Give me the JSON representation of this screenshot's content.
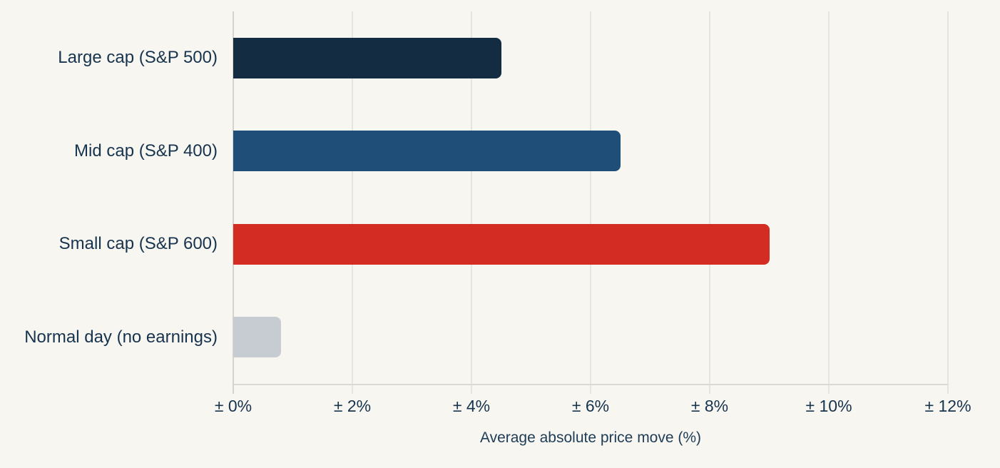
{
  "chart_data": {
    "type": "bar",
    "orientation": "horizontal",
    "title": "",
    "categories": [
      "Large cap (S&P 500)",
      "Mid cap (S&P 400)",
      "Small cap (S&P 600)",
      "Normal day (no earnings)"
    ],
    "values": [
      4.5,
      6.5,
      9.0,
      0.8
    ],
    "bar_colors": [
      "#142c42",
      "#1f4e78",
      "#d32d23",
      "#c7ccd3"
    ],
    "xlabel": "Average absolute price move (%)",
    "ylabel": "",
    "xlim": [
      0,
      12
    ],
    "xticks": [
      0,
      2,
      4,
      6,
      8,
      10,
      12
    ],
    "xtick_labels": [
      "± 0%",
      "± 2%",
      "± 4%",
      "± 6%",
      "± 8%",
      "± 10%",
      "± 12%"
    ],
    "grid": true,
    "legend": "none",
    "background_color": "#f8f6f0",
    "text_color": "#17344f"
  }
}
